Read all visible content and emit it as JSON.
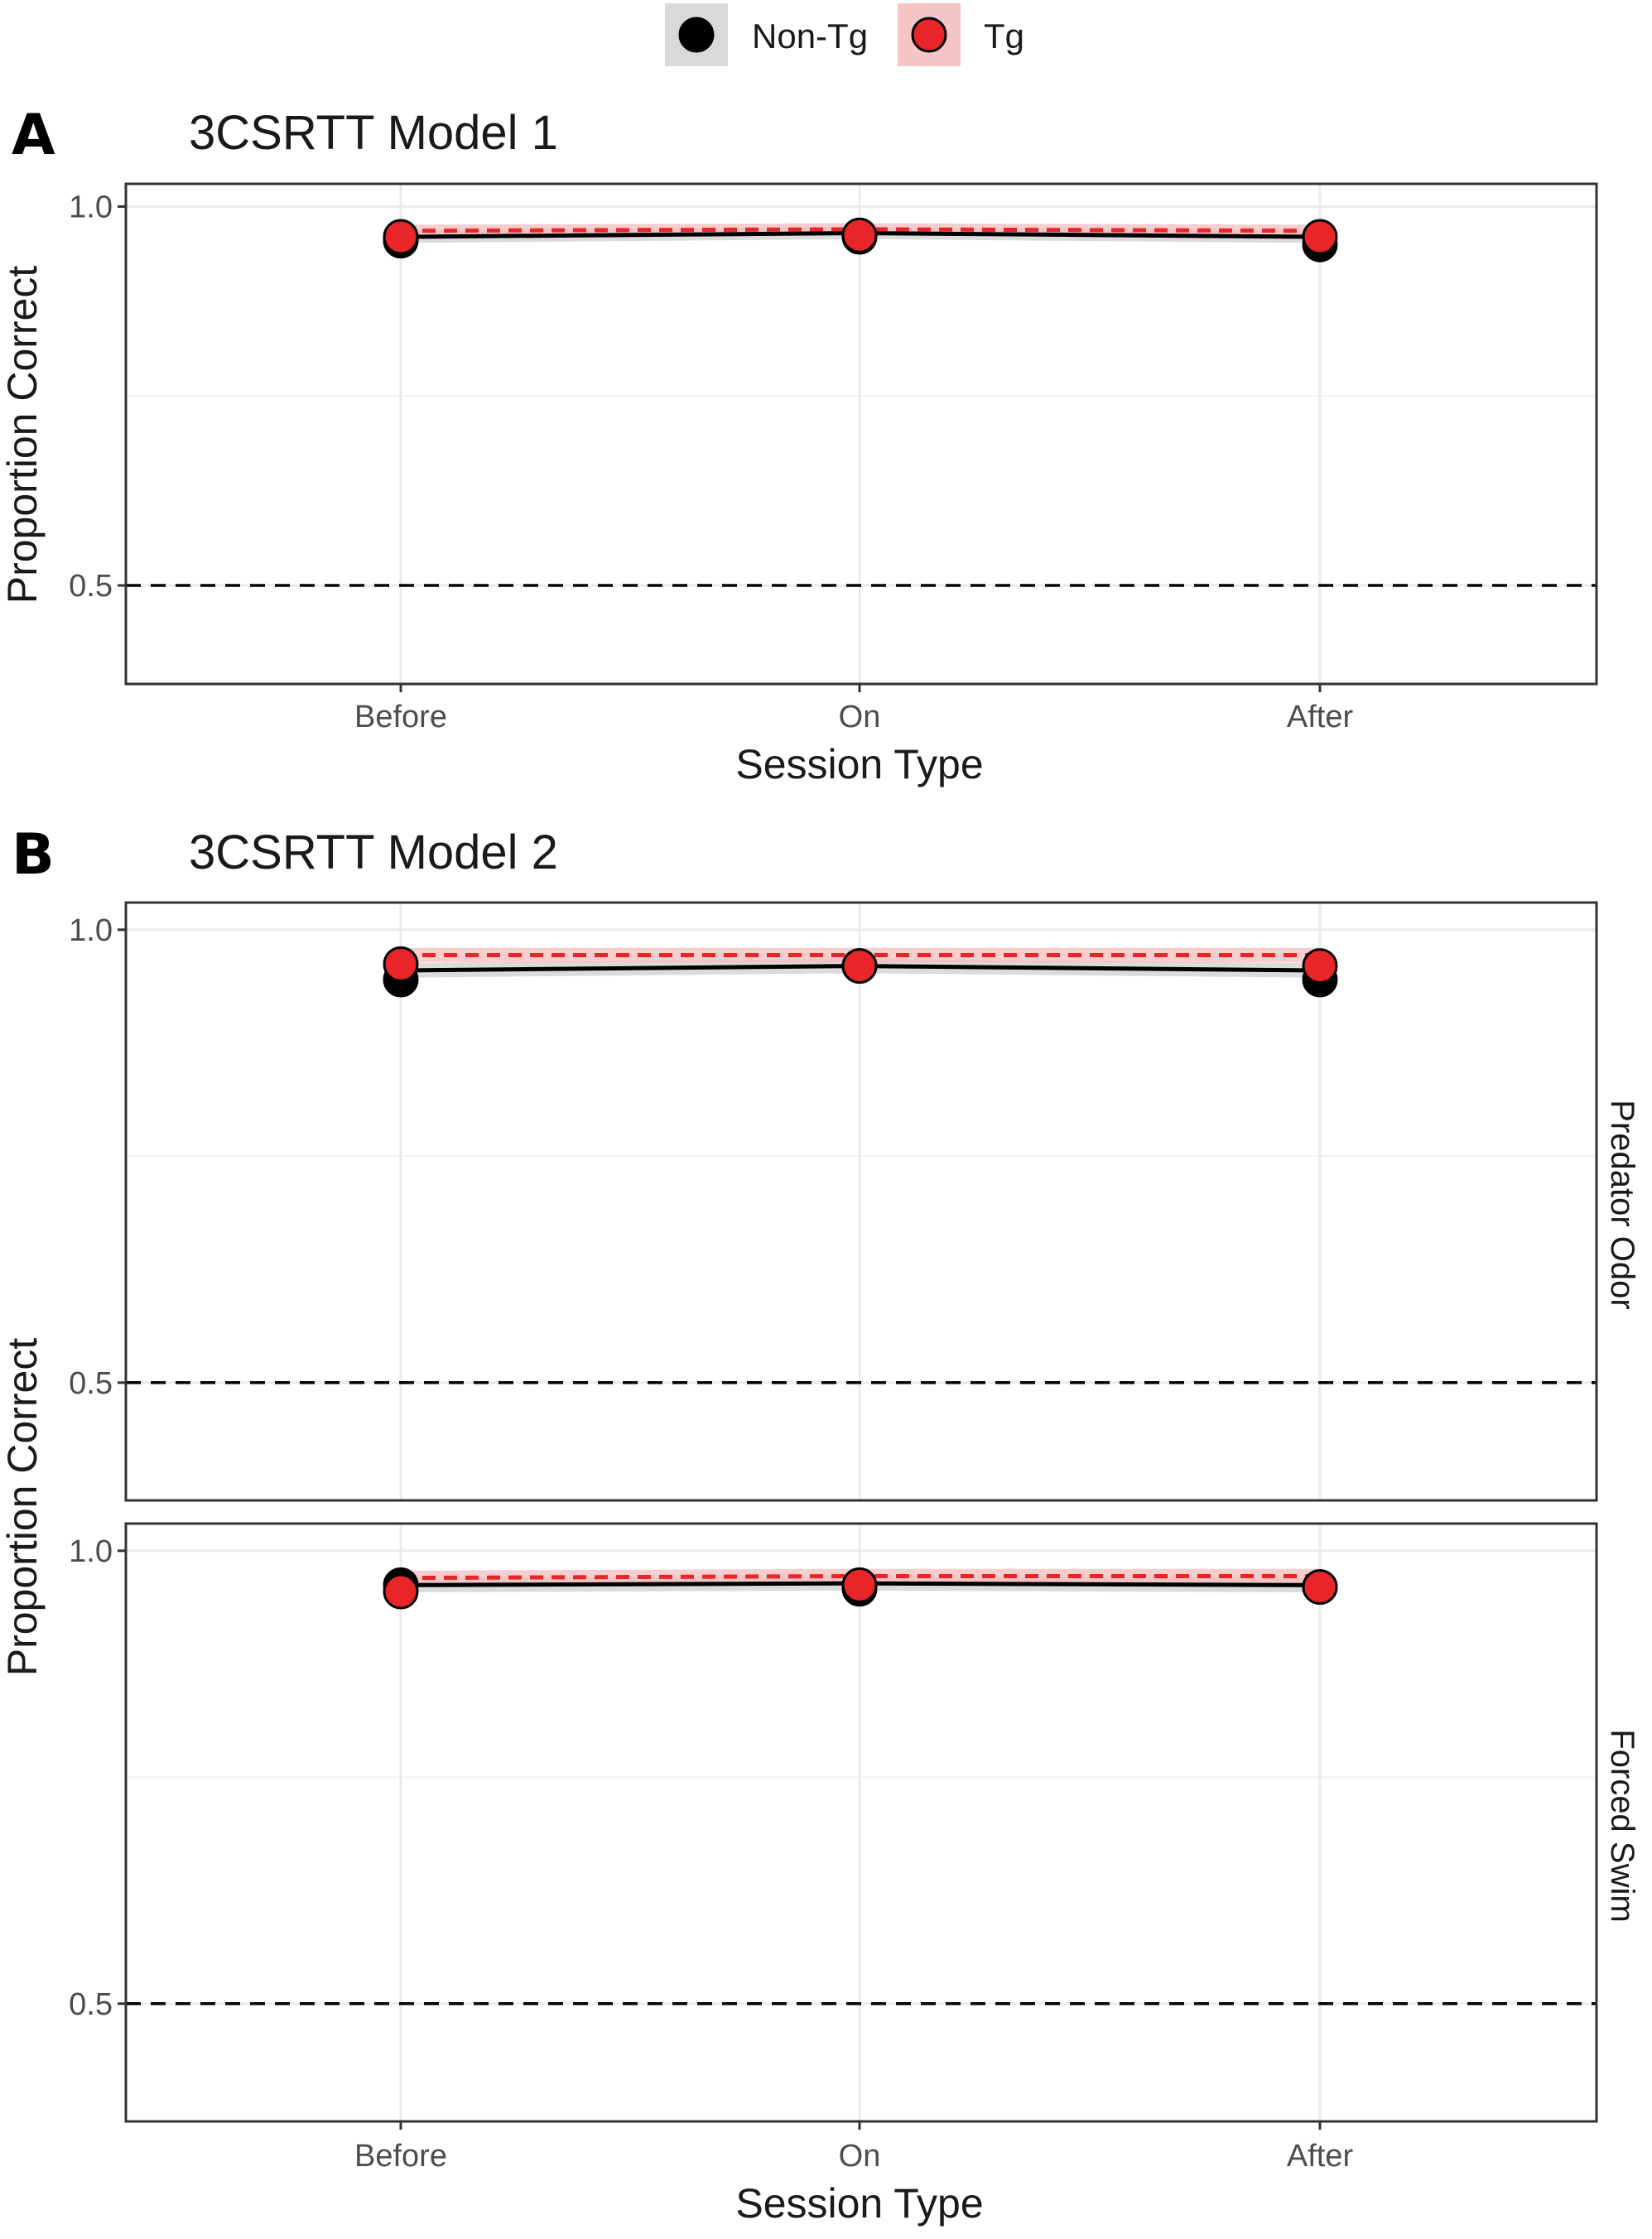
{
  "legend": {
    "items": [
      {
        "label": "Non-Tg",
        "color": "#000000",
        "band": "#d9d9d9"
      },
      {
        "label": "Tg",
        "color": "#e8262a",
        "band": "#f6c6c6"
      }
    ]
  },
  "colors": {
    "nontg": "#000000",
    "tg": "#e8262a",
    "nontg_band": "#cfcfcf",
    "tg_band": "#f4bcbc",
    "grid": "#ebebeb",
    "chance_line": "#000000"
  },
  "panels": {
    "A": {
      "letter": "A",
      "title": "3CSRTT Model 1"
    },
    "B": {
      "letter": "B",
      "title": "3CSRTT Model 2"
    }
  },
  "chart_data": [
    {
      "type": "line",
      "title": "3CSRTT Model 1",
      "xlabel": "Session Type",
      "ylabel": "Proportion Correct",
      "categories": [
        "Before",
        "On",
        "After"
      ],
      "ylim": [
        0.37,
        1.03
      ],
      "yticks": [
        0.5,
        1.0
      ],
      "ytick_labels": [
        "0.5",
        "1.0"
      ],
      "reference_line": 0.5,
      "grid": true,
      "legend_position": "top",
      "series": [
        {
          "name": "Non-Tg",
          "points": [
            0.955,
            0.96,
            0.95
          ],
          "fit": [
            0.96,
            0.965,
            0.96
          ]
        },
        {
          "name": "Tg",
          "points": [
            0.96,
            0.962,
            0.96
          ],
          "fit": [
            0.968,
            0.97,
            0.968
          ]
        }
      ]
    },
    {
      "type": "line",
      "title": "3CSRTT Model 2",
      "strip": "Predator Odor",
      "xlabel": "",
      "ylabel": "Proportion Correct",
      "categories": [
        "Before",
        "On",
        "After"
      ],
      "ylim": [
        0.37,
        1.03
      ],
      "yticks": [
        0.5,
        1.0
      ],
      "ytick_labels": [
        "0.5",
        "1.0"
      ],
      "reference_line": 0.5,
      "grid": true,
      "series": [
        {
          "name": "Non-Tg",
          "points": [
            0.945,
            0.96,
            0.945
          ],
          "fit": [
            0.955,
            0.96,
            0.955
          ]
        },
        {
          "name": "Tg",
          "points": [
            0.962,
            0.96,
            0.96
          ],
          "fit": [
            0.972,
            0.972,
            0.972
          ]
        }
      ]
    },
    {
      "type": "line",
      "title": "",
      "strip": "Forced Swim",
      "xlabel": "Session Type",
      "ylabel": "Proportion Correct",
      "categories": [
        "Before",
        "On",
        "After"
      ],
      "ylim": [
        0.37,
        1.03
      ],
      "yticks": [
        0.5,
        1.0
      ],
      "ytick_labels": [
        "0.5",
        "1.0"
      ],
      "reference_line": 0.5,
      "grid": true,
      "series": [
        {
          "name": "Non-Tg",
          "points": [
            0.962,
            0.958,
            0.96
          ],
          "fit": [
            0.962,
            0.964,
            0.962
          ]
        },
        {
          "name": "Tg",
          "points": [
            0.955,
            0.962,
            0.96
          ],
          "fit": [
            0.97,
            0.972,
            0.972
          ]
        }
      ]
    }
  ]
}
